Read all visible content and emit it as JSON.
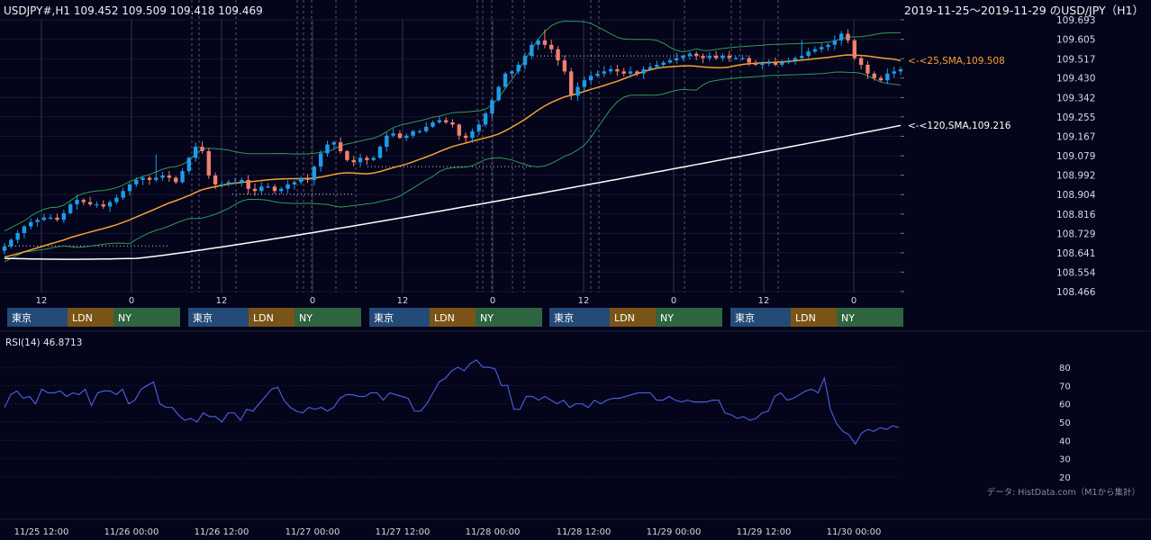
{
  "header": {
    "symbol_line": "USDJPY#,H1 109.452 109.509 109.418 109.469",
    "range_line": "2019-11-25～2019-11-29 のUSD/JPY（H1）"
  },
  "price_axis": [
    "109.693",
    "109.605",
    "109.517",
    "109.430",
    "109.342",
    "109.255",
    "109.167",
    "109.079",
    "108.992",
    "108.904",
    "108.816",
    "108.729",
    "108.641",
    "108.554",
    "108.466"
  ],
  "hour_labels": [
    "12",
    "0",
    "12",
    "0",
    "12",
    "0",
    "12",
    "0",
    "12",
    "0"
  ],
  "sessions": {
    "tokyo": "東京",
    "london": "LDN",
    "newyork": "NY"
  },
  "annotations": {
    "sma25": "<-<25,SMA,109.508",
    "sma120": "<-<120,SMA,109.216"
  },
  "rsi": {
    "title": "RSI(14) 46.8713",
    "axis": [
      "80",
      "70",
      "60",
      "50",
      "40",
      "30",
      "20"
    ]
  },
  "source_note": "データ: HistData.com（M1から集計）",
  "date_labels": [
    "11/25 12:00",
    "11/26 00:00",
    "11/26 12:00",
    "11/27 00:00",
    "11/27 12:00",
    "11/28 00:00",
    "11/28 12:00",
    "11/29 00:00",
    "11/29 12:00",
    "11/30 00:00"
  ],
  "colors": {
    "bull": "#1e9be8",
    "bear": "#f08070",
    "sma25": "#f7a030",
    "sma120": "#ffffff",
    "band": "#2e9a58",
    "rsi": "#4a5ad8",
    "tokyo": "#244a78",
    "london": "#7a5416",
    "newyork": "#2e6440"
  },
  "chart_data": [
    {
      "type": "candlestick",
      "title": "USDJPY#,H1",
      "ylim": [
        108.466,
        109.693
      ],
      "x_labels": [
        "11/25 12:00",
        "11/26 00:00",
        "11/26 12:00",
        "11/27 00:00",
        "11/27 12:00",
        "11/28 00:00",
        "11/28 12:00",
        "11/29 00:00",
        "11/29 12:00",
        "11/30 00:00"
      ],
      "close": [
        108.67,
        108.7,
        108.73,
        108.76,
        108.78,
        108.79,
        108.8,
        108.8,
        108.79,
        108.82,
        108.86,
        108.88,
        108.87,
        108.86,
        108.86,
        108.85,
        108.87,
        108.89,
        108.92,
        108.95,
        108.97,
        108.98,
        108.97,
        108.98,
        108.99,
        108.98,
        108.96,
        109.01,
        109.07,
        109.12,
        109.1,
        108.99,
        108.95,
        108.95,
        108.96,
        108.96,
        108.97,
        108.93,
        108.92,
        108.94,
        108.94,
        108.92,
        108.93,
        108.95,
        108.96,
        108.98,
        108.97,
        109.03,
        109.09,
        109.13,
        109.14,
        109.1,
        109.06,
        109.05,
        109.07,
        109.06,
        109.07,
        109.12,
        109.17,
        109.18,
        109.16,
        109.17,
        109.19,
        109.19,
        109.21,
        109.23,
        109.24,
        109.23,
        109.22,
        109.17,
        109.16,
        109.19,
        109.22,
        109.27,
        109.33,
        109.39,
        109.45,
        109.46,
        109.49,
        109.53,
        109.58,
        109.6,
        109.58,
        109.56,
        109.51,
        109.46,
        109.35,
        109.39,
        109.42,
        109.44,
        109.45,
        109.46,
        109.47,
        109.46,
        109.45,
        109.46,
        109.45,
        109.47,
        109.48,
        109.49,
        109.5,
        109.51,
        109.52,
        109.53,
        109.54,
        109.53,
        109.52,
        109.53,
        109.52,
        109.53,
        109.52,
        109.52,
        109.52,
        109.5,
        109.49,
        109.5,
        109.5,
        109.49,
        109.5,
        109.51,
        109.52,
        109.53,
        109.55,
        109.56,
        109.57,
        109.58,
        109.6,
        109.63,
        109.6,
        109.52,
        109.49,
        109.45,
        109.43,
        109.42,
        109.45,
        109.46,
        109.47
      ],
      "series": [
        {
          "name": "25,SMA",
          "last": 109.508
        },
        {
          "name": "120,SMA",
          "last": 109.216
        }
      ]
    },
    {
      "type": "line",
      "title": "RSI(14) 46.8713",
      "ylim": [
        20,
        80
      ],
      "values": [
        58,
        65,
        67,
        63,
        64,
        60,
        68,
        66,
        66,
        67,
        64,
        66,
        65,
        68,
        59,
        66,
        67,
        67,
        65,
        68,
        60,
        62,
        68,
        70,
        72,
        60,
        58,
        58,
        54,
        51,
        52,
        50,
        55,
        53,
        53,
        50,
        55,
        55,
        51,
        57,
        56,
        60,
        64,
        68,
        69,
        62,
        58,
        56,
        55,
        58,
        57,
        58,
        56,
        58,
        63,
        65,
        65,
        64,
        64,
        66,
        66,
        62,
        66,
        65,
        64,
        63,
        56,
        56,
        60,
        66,
        72,
        74,
        78,
        80,
        78,
        82,
        84,
        80,
        80,
        79,
        70,
        70,
        57,
        57,
        64,
        64,
        62,
        64,
        62,
        60,
        62,
        58,
        60,
        60,
        58,
        62,
        60,
        62,
        63,
        63,
        64,
        65,
        66,
        66,
        66,
        62,
        62,
        64,
        62,
        61,
        62,
        61,
        61,
        61,
        62,
        62,
        55,
        54,
        52,
        53,
        51,
        52,
        55,
        56,
        64,
        66,
        62,
        63,
        65,
        67,
        68,
        66,
        74,
        57,
        49,
        45,
        43,
        38,
        44,
        46,
        45,
        47,
        46,
        48,
        47
      ]
    }
  ]
}
